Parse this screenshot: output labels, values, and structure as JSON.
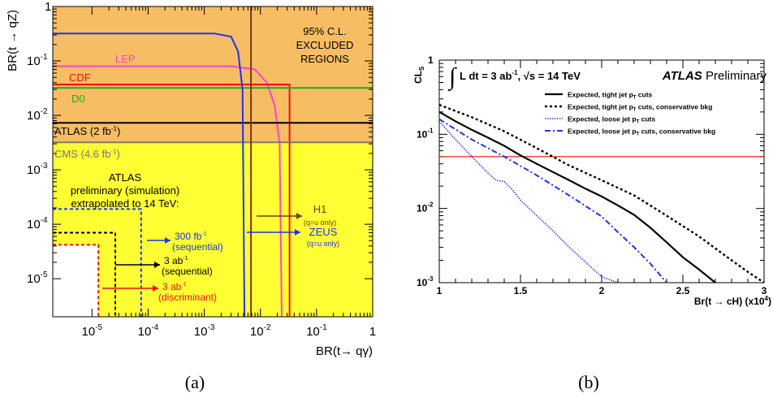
{
  "colors": {
    "yellow": "#ffff33",
    "orange": "#f7bd63",
    "lep": "#ff44cc",
    "cdf": "#ee1111",
    "d0": "#22aa22",
    "atlas": "#000000",
    "cms": "#777777",
    "h1": "#7a3b10",
    "zeus": "#2233ee",
    "lumi300": "#2233ee",
    "lumi3": "#000000",
    "discr": "#ee1111",
    "threshold": "#ee1111"
  },
  "panel_a": {
    "caption": "(a)",
    "excluded_title": [
      "95% C.L.",
      "EXCLUDED",
      "REGIONS"
    ],
    "labels": {
      "lep": "LEP",
      "cdf": "CDF",
      "d0": "D0",
      "atlas_main": "ATLAS (2 fb",
      "atlas_sup": "-1",
      "atlas_tail": ")",
      "cms_main": "CMS (4.6 fb",
      "cms_sup": "-1",
      "cms_tail": ")",
      "atlas_prelim": [
        "ATLAS",
        "preliminary (simulation)",
        "extrapolated to 14 TeV:"
      ],
      "h1": "H1",
      "h1_note": "(q=u only)",
      "zeus": "ZEUS",
      "zeus_note": "(q=u only)",
      "lumi300_main": "300 fb",
      "lumi300_sup": "-1",
      "lumi300_note": "(sequential)",
      "lumi3_main": "3 ab",
      "lumi3_sup": "-1",
      "lumi3_note": "(sequential)",
      "discr_main": "3 ab",
      "discr_sup": "-1",
      "discr_note": "(discriminant)"
    },
    "xtick_mantissa": [
      "10",
      "10",
      "10",
      "10",
      "10",
      "1"
    ],
    "xtick_exps": [
      "-5",
      "-4",
      "-3",
      "-2",
      "-1",
      ""
    ],
    "ytick_mantissa": [
      "10",
      "10",
      "10",
      "10",
      "10",
      "1"
    ],
    "ytick_exps": [
      "-5",
      "-4",
      "-3",
      "-2",
      "-1",
      ""
    ]
  },
  "panel_b": {
    "caption": "(b)",
    "ylabel_main": "CL",
    "ylabel_sub": "S",
    "xlabel": "Br(t → cH) (x10",
    "xlabel_sup": "4",
    "xlabel_tail": ")",
    "lumi_a": "L dt = 3 ab",
    "lumi_sup": "-1",
    "lumi_b": ", √s = 14 TeV",
    "atlas_bold": "ATLAS",
    "atlas_rest": " Preliminary",
    "xticks": [
      "1",
      "1.5",
      "2",
      "2.5",
      "3"
    ],
    "ytick_labels": [
      "1",
      "10",
      "10",
      "10"
    ],
    "ytick_exps": [
      "",
      "-1",
      "-2",
      "-3"
    ]
  },
  "chart_data": [
    {
      "type": "line",
      "title": "",
      "xlabel": "BR(t→ qγ)",
      "ylabel": "BR(t → qZ)",
      "xscale": "log",
      "yscale": "log",
      "xlim": [
        2e-06,
        1
      ],
      "ylim": [
        2e-06,
        1
      ],
      "grid": false,
      "regions": [
        {
          "name": "ATLAS preliminary (simulation) extrapolated to 14 TeV",
          "color": "yellow",
          "x_max": 1,
          "y_max": 0.0033
        },
        {
          "name": "95% C.L. EXCLUDED REGIONS",
          "color": "orange"
        }
      ],
      "series": [
        {
          "name": "LEP",
          "points": [
            [
              2e-06,
              0.08
            ],
            [
              0.003,
              0.08
            ],
            [
              0.008,
              0.07
            ],
            [
              0.013,
              0.04
            ],
            [
              0.018,
              0.015
            ],
            [
              0.022,
              0.003
            ],
            [
              0.024,
              2e-06
            ]
          ]
        },
        {
          "name": "CDF",
          "points": [
            [
              2e-06,
              0.037
            ],
            [
              0.033,
              0.037
            ],
            [
              0.033,
              2e-06
            ]
          ]
        },
        {
          "name": "D0",
          "points": [
            [
              2e-06,
              0.032
            ],
            [
              1,
              0.032
            ]
          ]
        },
        {
          "name": "ATLAS (2 fb-1)",
          "points": [
            [
              2e-06,
              0.0073
            ],
            [
              1,
              0.0073
            ]
          ]
        },
        {
          "name": "CMS (4.6 fb-1)",
          "points": [
            [
              2e-06,
              0.0032
            ],
            [
              1,
              0.0032
            ]
          ]
        },
        {
          "name": "H1 (q=u only)",
          "points": [
            [
              0.0068,
              2e-06
            ],
            [
              0.0068,
              1
            ]
          ]
        },
        {
          "name": "ZEUS (q=u only)",
          "points": [
            [
              2e-06,
              0.32
            ],
            [
              0.0015,
              0.32
            ],
            [
              0.003,
              0.28
            ],
            [
              0.004,
              0.15
            ],
            [
              0.0048,
              0.03
            ],
            [
              0.0052,
              2e-06
            ]
          ]
        },
        {
          "name": "300 fb-1 (sequential)",
          "points": [
            [
              2e-06,
              0.00019
            ],
            [
              7.5e-05,
              0.00019
            ],
            [
              7.5e-05,
              2e-06
            ]
          ]
        },
        {
          "name": "3 ab-1 (sequential)",
          "points": [
            [
              2e-06,
              7e-05
            ],
            [
              2.6e-05,
              7e-05
            ],
            [
              2.6e-05,
              2e-06
            ]
          ]
        },
        {
          "name": "3 ab-1 (discriminant)",
          "points": [
            [
              2e-06,
              4.2e-05
            ],
            [
              1.3e-05,
              4.2e-05
            ],
            [
              1.3e-05,
              2e-06
            ]
          ]
        }
      ]
    },
    {
      "type": "line",
      "title": "",
      "xlabel": "Br(t → cH) (x10^4)",
      "ylabel": "CL_S",
      "yscale": "log",
      "xlim": [
        1,
        3
      ],
      "ylim": [
        0.001,
        1
      ],
      "grid": false,
      "threshold": 0.05,
      "series": [
        {
          "name": "Expected, tight jet pT cuts",
          "style": "solid",
          "x": [
            1,
            1.1,
            1.2,
            1.3,
            1.4,
            1.5,
            1.6,
            1.7,
            1.8,
            1.9,
            2.0,
            2.1,
            2.2,
            2.3,
            2.4,
            2.5,
            2.6,
            2.7
          ],
          "y": [
            0.2,
            0.15,
            0.115,
            0.09,
            0.07,
            0.052,
            0.04,
            0.031,
            0.024,
            0.0185,
            0.0145,
            0.011,
            0.0082,
            0.0055,
            0.0035,
            0.0022,
            0.0015,
            0.001
          ]
        },
        {
          "name": "Expected, tight jet pT cuts, conservative bkg",
          "style": "dotted",
          "x": [
            1,
            1.2,
            1.4,
            1.6,
            1.8,
            2.0,
            2.2,
            2.4,
            2.6,
            2.8,
            2.9,
            3.0
          ],
          "y": [
            0.25,
            0.17,
            0.11,
            0.065,
            0.038,
            0.024,
            0.015,
            0.008,
            0.0042,
            0.002,
            0.0014,
            0.001
          ]
        },
        {
          "name": "Expected, loose jet pT cuts",
          "style": "fine-dotted",
          "x": [
            1,
            1.1,
            1.2,
            1.3,
            1.35,
            1.4,
            1.45,
            1.5,
            1.6,
            1.7,
            1.8,
            1.9,
            2.0,
            2.1
          ],
          "y": [
            0.15,
            0.085,
            0.05,
            0.03,
            0.024,
            0.023,
            0.018,
            0.013,
            0.008,
            0.005,
            0.003,
            0.0019,
            0.0012,
            0.001
          ]
        },
        {
          "name": "Expected, loose jet pT cuts, conservative bkg",
          "style": "dash-dot",
          "x": [
            1,
            1.2,
            1.4,
            1.6,
            1.8,
            2.0,
            2.1,
            2.2,
            2.3,
            2.4
          ],
          "y": [
            0.16,
            0.085,
            0.05,
            0.028,
            0.015,
            0.0078,
            0.0048,
            0.003,
            0.0018,
            0.001
          ]
        }
      ]
    }
  ]
}
